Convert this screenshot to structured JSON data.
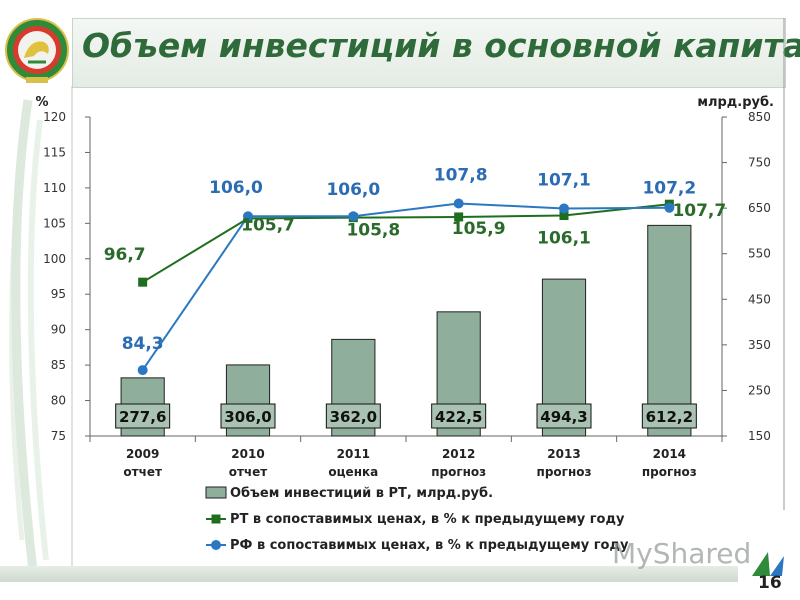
{
  "slide": {
    "title": "Объем инвестиций в основной капитал",
    "page_number": "16",
    "watermark": "MyShared"
  },
  "colors": {
    "bar_fill": "#8fae9c",
    "bar_stroke": "#222222",
    "rt_line": "#1f6e1f",
    "rf_line": "#2b78c2",
    "rt_label": "#2a6a2a",
    "rf_label": "#2b6cb3",
    "title": "#2f6b3a"
  },
  "chart_data": {
    "type": "bar+line",
    "categories": [
      [
        "2009",
        "отчет"
      ],
      [
        "2010",
        "отчет"
      ],
      [
        "2011",
        "оценка"
      ],
      [
        "2012",
        "прогноз"
      ],
      [
        "2013",
        "прогноз"
      ],
      [
        "2014",
        "прогноз"
      ]
    ],
    "left_axis": {
      "label": "%",
      "min": 75,
      "max": 120,
      "ticks": [
        75,
        80,
        85,
        90,
        95,
        100,
        105,
        110,
        115,
        120
      ]
    },
    "right_axis": {
      "label": "млрд.руб.",
      "min": 150,
      "max": 850,
      "ticks": [
        150,
        250,
        350,
        450,
        550,
        650,
        750,
        850
      ]
    },
    "bars": {
      "name": "Объем инвестиций в РТ, млрд.руб.",
      "axis": "right",
      "values": [
        277.6,
        306.0,
        362.0,
        422.5,
        494.3,
        612.2
      ],
      "labels": [
        "277,6",
        "306,0",
        "362,0",
        "422,5",
        "494,3",
        "612,2"
      ]
    },
    "lines": [
      {
        "name": "РТ в сопоставимых ценах, в % к предыдущему году",
        "axis": "left",
        "marker": "square",
        "values": [
          96.7,
          105.7,
          105.8,
          105.9,
          106.1,
          107.7
        ],
        "labels": [
          "96,7",
          "105,7",
          "105,8",
          "105,9",
          "106,1",
          "107,7"
        ]
      },
      {
        "name": "РФ в сопоставимых ценах, в % к предыдущему году",
        "axis": "left",
        "marker": "circle",
        "values": [
          84.3,
          106.0,
          106.0,
          107.8,
          107.1,
          107.2
        ],
        "labels": [
          "84,3",
          "106,0",
          "106,0",
          "107,8",
          "107,1",
          "107,2"
        ]
      }
    ]
  }
}
